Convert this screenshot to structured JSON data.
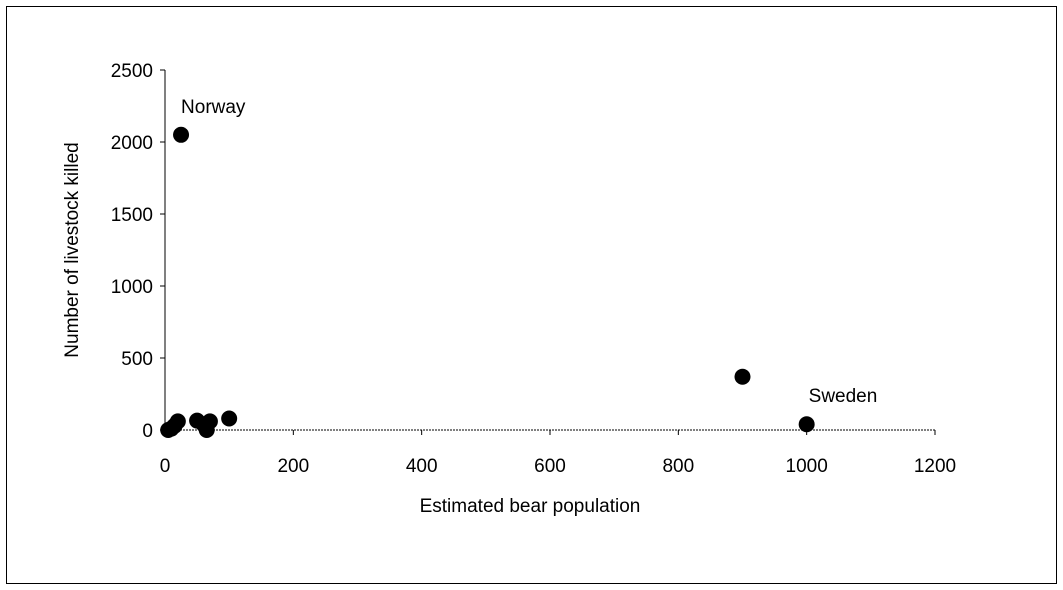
{
  "chart_data": {
    "type": "scatter",
    "title": "",
    "xlabel": "Estimated bear population",
    "ylabel": "Number of livestock killed",
    "xlim": [
      0,
      1200
    ],
    "ylim": [
      0,
      2500
    ],
    "xticks": [
      0,
      200,
      400,
      600,
      800,
      1000,
      1200
    ],
    "yticks": [
      0,
      500,
      1000,
      1500,
      2000,
      2500
    ],
    "grid": false,
    "legend": "none",
    "marker_color": "#000000",
    "series": [
      {
        "points": [
          {
            "x": 25,
            "y": 2050
          },
          {
            "x": 900,
            "y": 370
          },
          {
            "x": 1000,
            "y": 40
          },
          {
            "x": 5,
            "y": 0
          },
          {
            "x": 10,
            "y": 10
          },
          {
            "x": 15,
            "y": 30
          },
          {
            "x": 20,
            "y": 60
          },
          {
            "x": 50,
            "y": 65
          },
          {
            "x": 60,
            "y": 40
          },
          {
            "x": 65,
            "y": 0
          },
          {
            "x": 70,
            "y": 60
          },
          {
            "x": 100,
            "y": 80
          }
        ]
      }
    ],
    "annotations": [
      {
        "text": "Norway",
        "x": 25,
        "y": 2050
      },
      {
        "text": "Sweden",
        "x": 1000,
        "y": 40
      }
    ]
  }
}
